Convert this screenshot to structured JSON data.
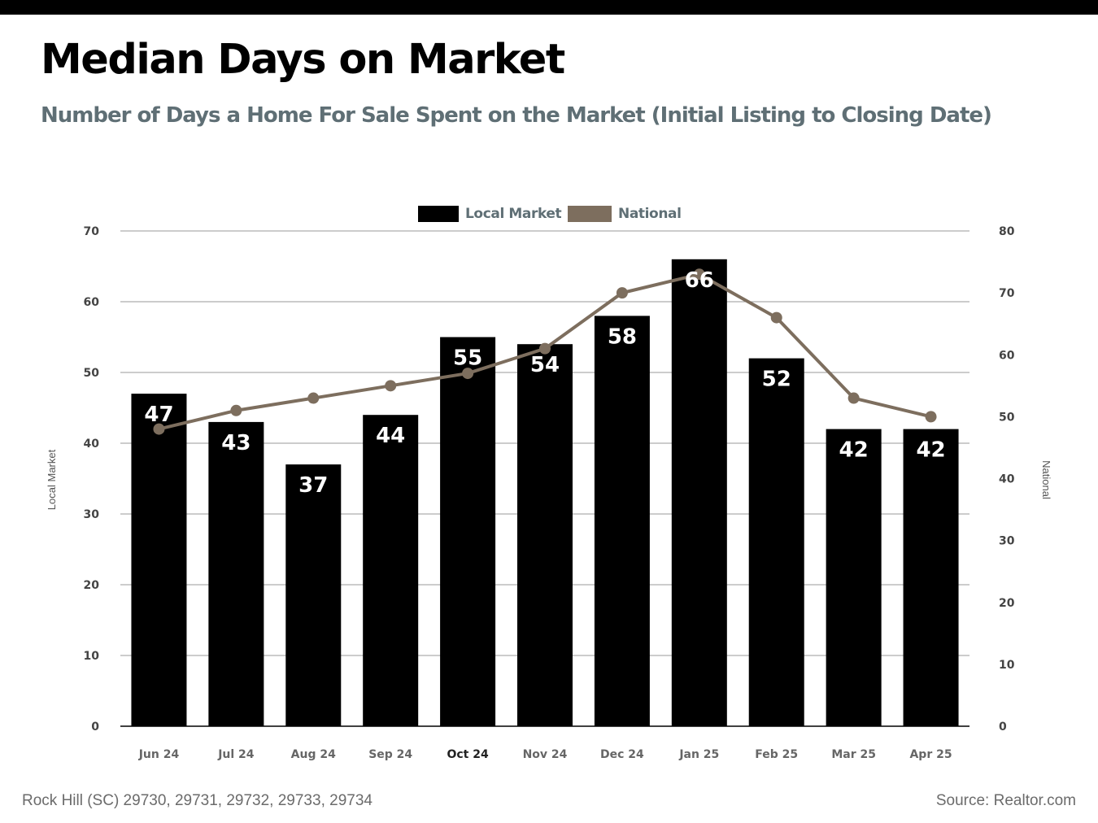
{
  "header": {
    "title": "Median Days on Market",
    "subtitle": "Number of Days a Home For Sale Spent on the Market (Initial Listing to Closing Date)"
  },
  "footer": {
    "location": "Rock Hill (SC) 29730, 29731, 29732, 29733, 29734",
    "source": "Source: Realtor.com"
  },
  "colors": {
    "local_bar": "#000000",
    "national_line": "#7d6e5e",
    "grid": "#9a9a9a",
    "legend_text": "#5f6f75"
  },
  "chart_data": {
    "type": "bar",
    "categories": [
      "Jun 24",
      "Jul 24",
      "Aug 24",
      "Sep 24",
      "Oct 24",
      "Nov 24",
      "Dec 24",
      "Jan 25",
      "Feb 25",
      "Mar 25",
      "Apr 25"
    ],
    "series": [
      {
        "name": "Local Market",
        "type": "bar",
        "axis": "left",
        "values": [
          47,
          43,
          37,
          44,
          55,
          54,
          58,
          66,
          52,
          42,
          42
        ]
      },
      {
        "name": "National",
        "type": "line",
        "axis": "right",
        "values": [
          48,
          51,
          53,
          55,
          57,
          61,
          70,
          73,
          66,
          53,
          50
        ]
      }
    ],
    "ylabel_left": "Local Market",
    "ylabel_right": "National",
    "ylim_left": [
      0,
      70
    ],
    "ylim_right": [
      0,
      80
    ],
    "yticks_left": [
      0,
      10,
      20,
      30,
      40,
      50,
      60,
      70
    ],
    "yticks_right": [
      0,
      10,
      20,
      30,
      40,
      50,
      60,
      70,
      80
    ],
    "grid": true,
    "legend_position": "top-center"
  }
}
